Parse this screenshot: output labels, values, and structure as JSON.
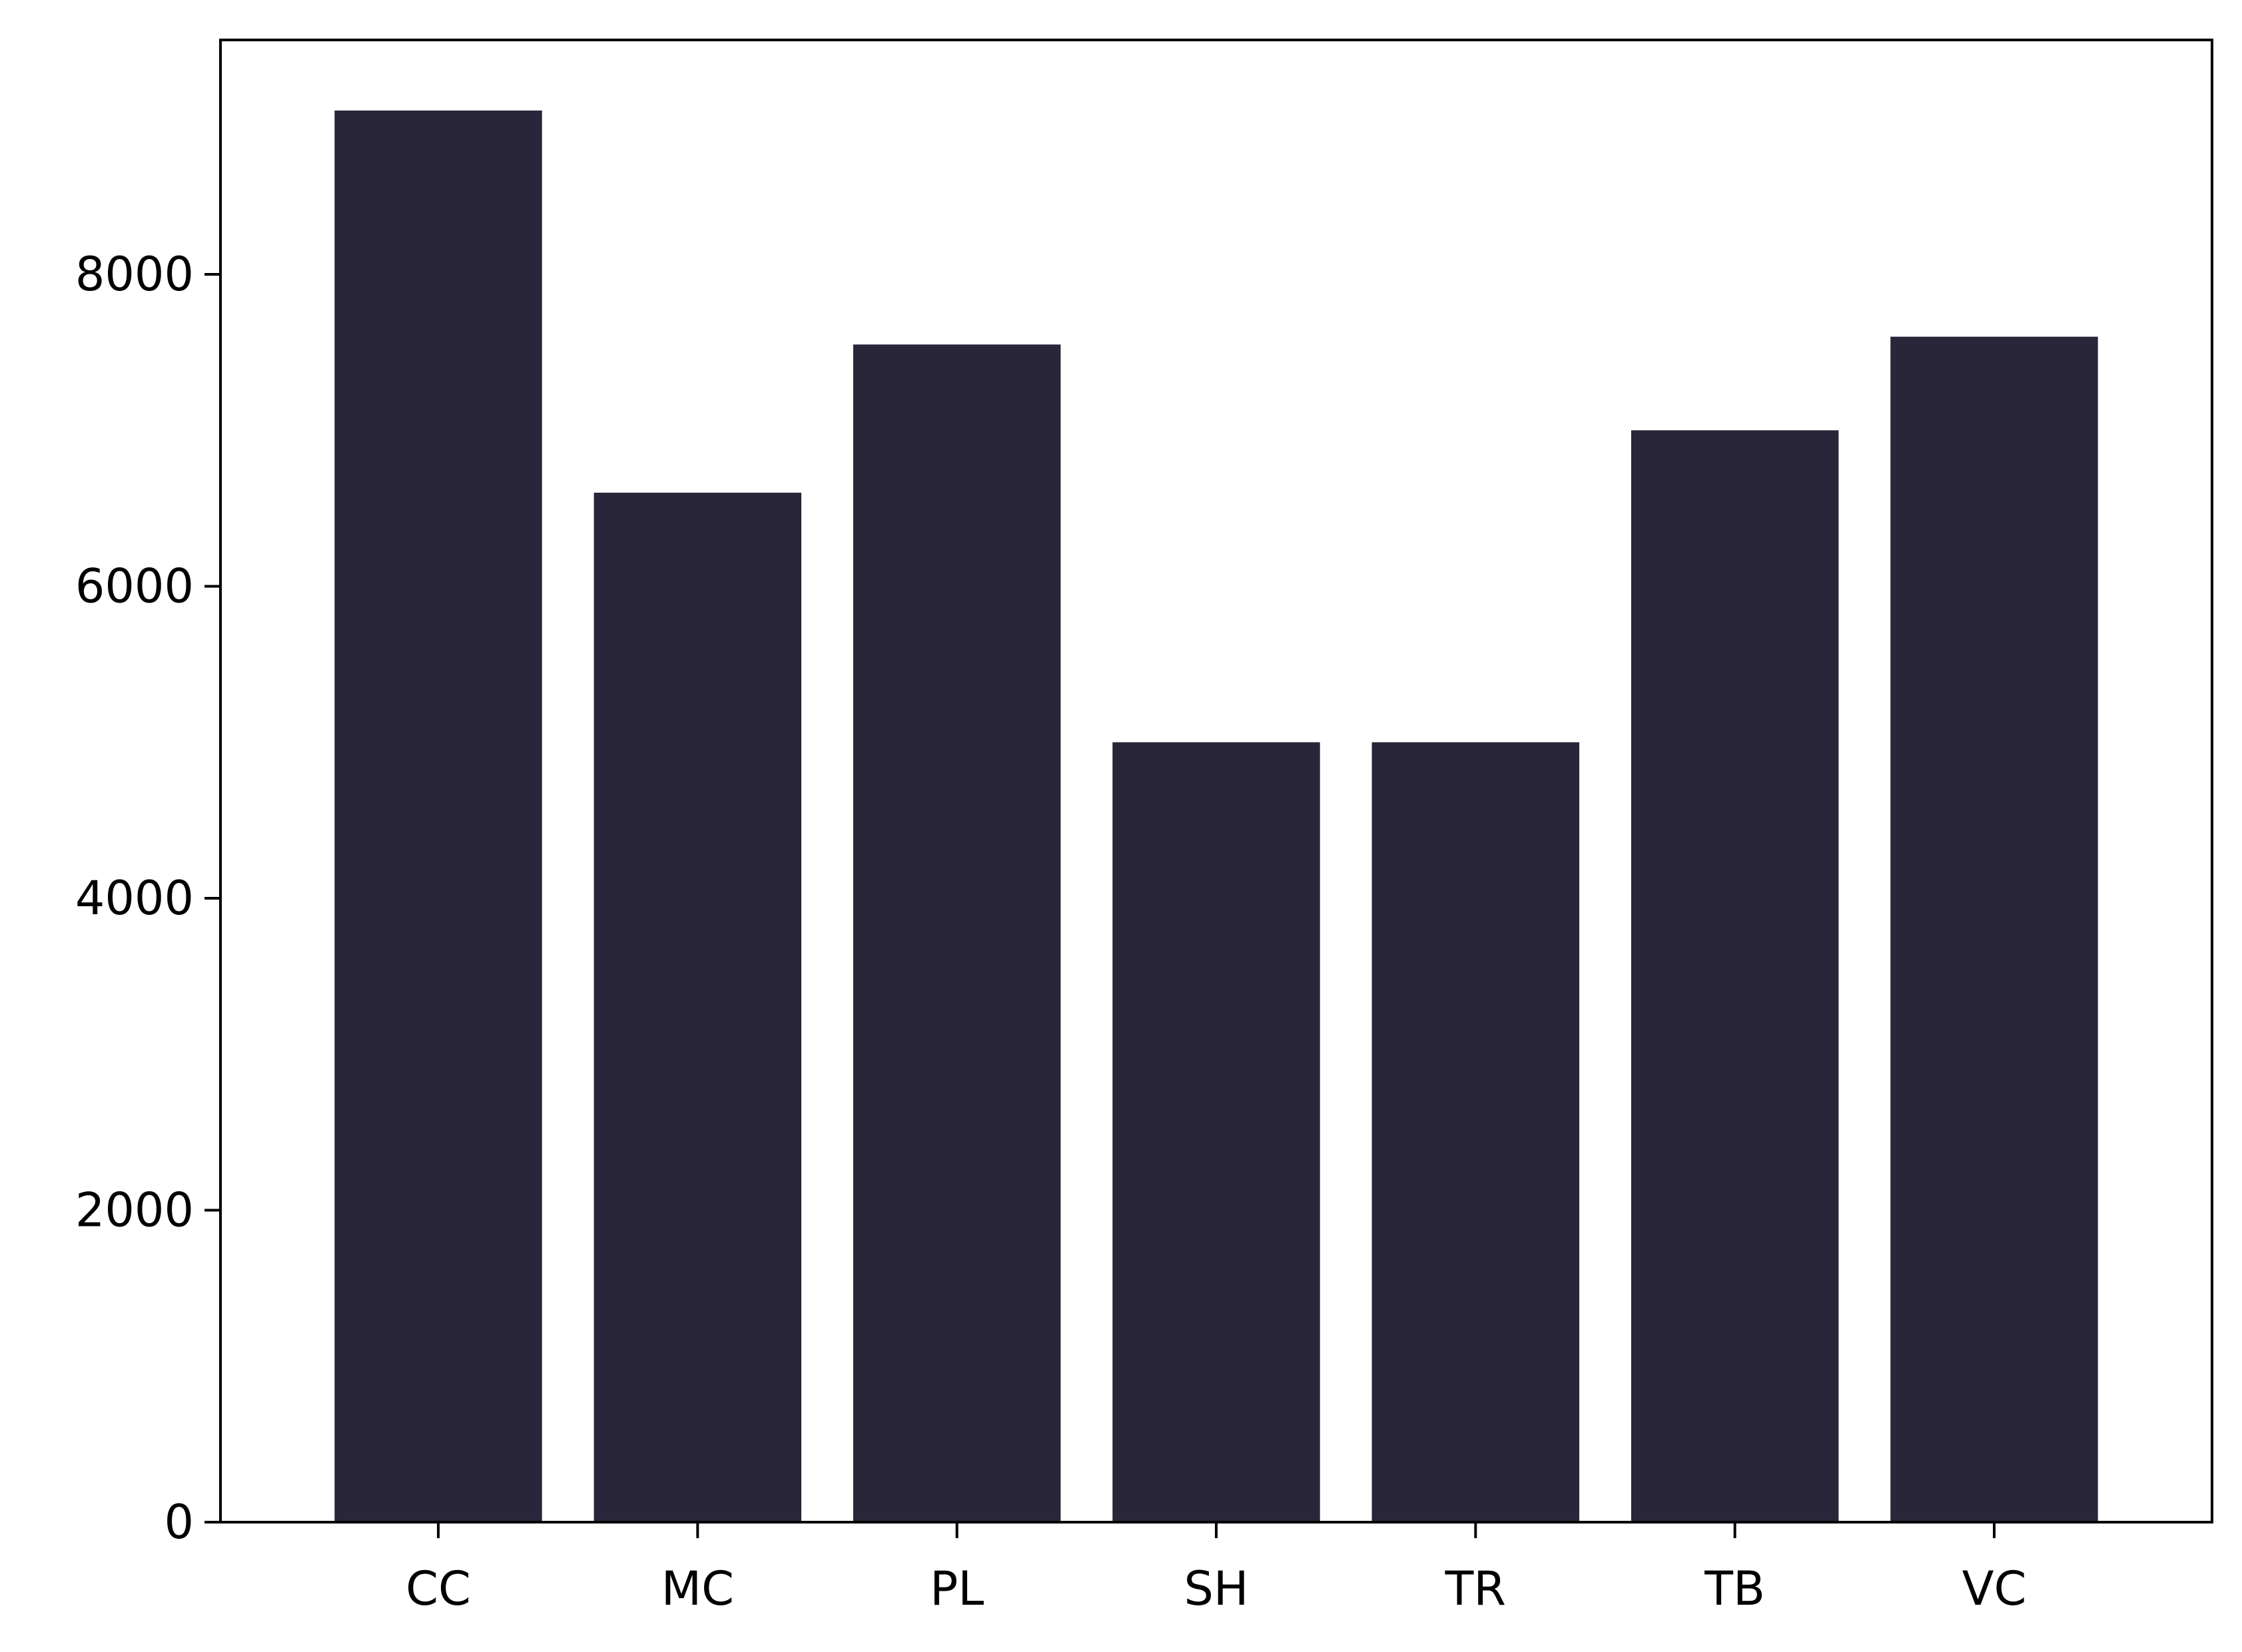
{
  "chart_data": {
    "type": "bar",
    "title": "",
    "xlabel": "",
    "ylabel": "",
    "categories": [
      "CC",
      "MC",
      "PL",
      "SH",
      "TR",
      "TB",
      "VC"
    ],
    "values": [
      9050,
      6600,
      7550,
      5000,
      5000,
      7000,
      7600
    ],
    "ylim": [
      0,
      9502.5
    ],
    "yticks": [
      0,
      2000,
      4000,
      6000,
      8000
    ],
    "ytick_labels": [
      "0",
      "2000",
      "4000",
      "6000",
      "8000"
    ],
    "grid": false,
    "legend": "none",
    "colors": {
      "bar": "#2a2639",
      "axis": "#000000",
      "background": "#ffffff"
    }
  }
}
